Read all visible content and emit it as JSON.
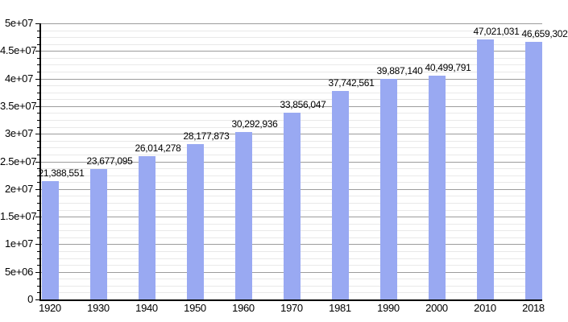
{
  "chart_data": {
    "type": "bar",
    "title": "",
    "categories": [
      "1920",
      "1930",
      "1940",
      "1950",
      "1960",
      "1970",
      "1981",
      "1990",
      "2000",
      "2010",
      "2018"
    ],
    "values": [
      21388551,
      23677095,
      26014278,
      28177873,
      30292936,
      33856047,
      37742561,
      39887140,
      40499791,
      47021031,
      46659302
    ],
    "value_labels": [
      "21,388,551",
      "23,677,095",
      "26,014,278",
      "28,177,873",
      "30,292,936",
      "33,856,047",
      "37,742,561",
      "39,887,140",
      "40,499,791",
      "47,021,031",
      "46,659,302"
    ],
    "xlabel": "",
    "ylabel": "",
    "ylim": [
      0,
      50000000
    ],
    "y_major_step": 5000000,
    "y_minor_step": 1250000,
    "y_ticks": [
      {
        "value": 0,
        "label": "0"
      },
      {
        "value": 5000000,
        "label": "5e+06"
      },
      {
        "value": 10000000,
        "label": "1e+07"
      },
      {
        "value": 15000000,
        "label": "1.5e+07"
      },
      {
        "value": 20000000,
        "label": "2e+07"
      },
      {
        "value": 25000000,
        "label": "2.5e+07"
      },
      {
        "value": 30000000,
        "label": "3e+07"
      },
      {
        "value": 35000000,
        "label": "3.5e+07"
      },
      {
        "value": 40000000,
        "label": "4e+07"
      },
      {
        "value": 45000000,
        "label": "4.5e+07"
      },
      {
        "value": 50000000,
        "label": "5e+07"
      }
    ],
    "grid": true,
    "legend": false,
    "colors": {
      "bar": "#99a9f2",
      "major_grid": "#9c9c9c",
      "minor_grid": "#e9e9e9",
      "axis": "#000000",
      "text": "#000000",
      "background": "#ffffff"
    }
  }
}
